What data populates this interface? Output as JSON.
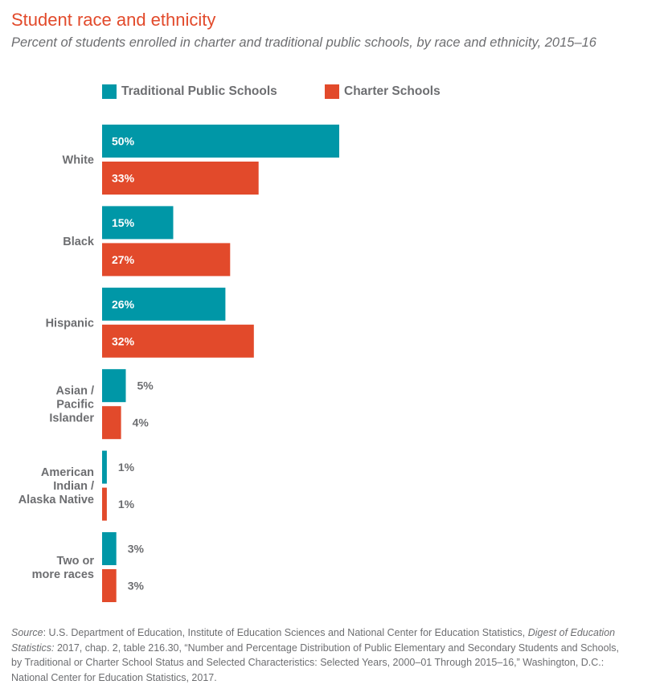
{
  "chart_data": {
    "type": "bar",
    "orientation": "horizontal",
    "title": "Student race and ethnicity",
    "subtitle": "Percent of students enrolled in charter and traditional public schools, by race and ethnicity, 2015–16",
    "categories": [
      [
        "White"
      ],
      [
        "Black"
      ],
      [
        "Hispanic"
      ],
      [
        "Asian /",
        "Pacific",
        "Islander"
      ],
      [
        "American",
        "Indian /",
        "Alaska Native"
      ],
      [
        "Two or",
        "more races"
      ]
    ],
    "series": [
      {
        "name": "Traditional Public Schools",
        "color": "#0097a7",
        "values": [
          50,
          15,
          26,
          5,
          1,
          3
        ]
      },
      {
        "name": "Charter Schools",
        "color": "#e24a2b",
        "values": [
          33,
          27,
          32,
          4,
          1,
          3
        ]
      }
    ],
    "value_suffix": "%",
    "xlim": [
      0,
      50
    ],
    "grid": false,
    "legend_position": "top"
  },
  "source": {
    "label": "Source",
    "text_before_italic": ": U.S. Department of Education, Institute of Education Sciences and National Center for Education Statistics, ",
    "italic_title": "Digest of Education Statistics:",
    "text_after_italic": " 2017, chap. 2, table 216.30, “Number and Percentage Distribution of Public Elementary and Secondary Students and Schools, by Traditional or Charter School Status and Selected Characteristics: Selected Years, 2000–01 Through 2015–16,” Washington, D.C.: National Center for Education Statistics, 2017."
  }
}
